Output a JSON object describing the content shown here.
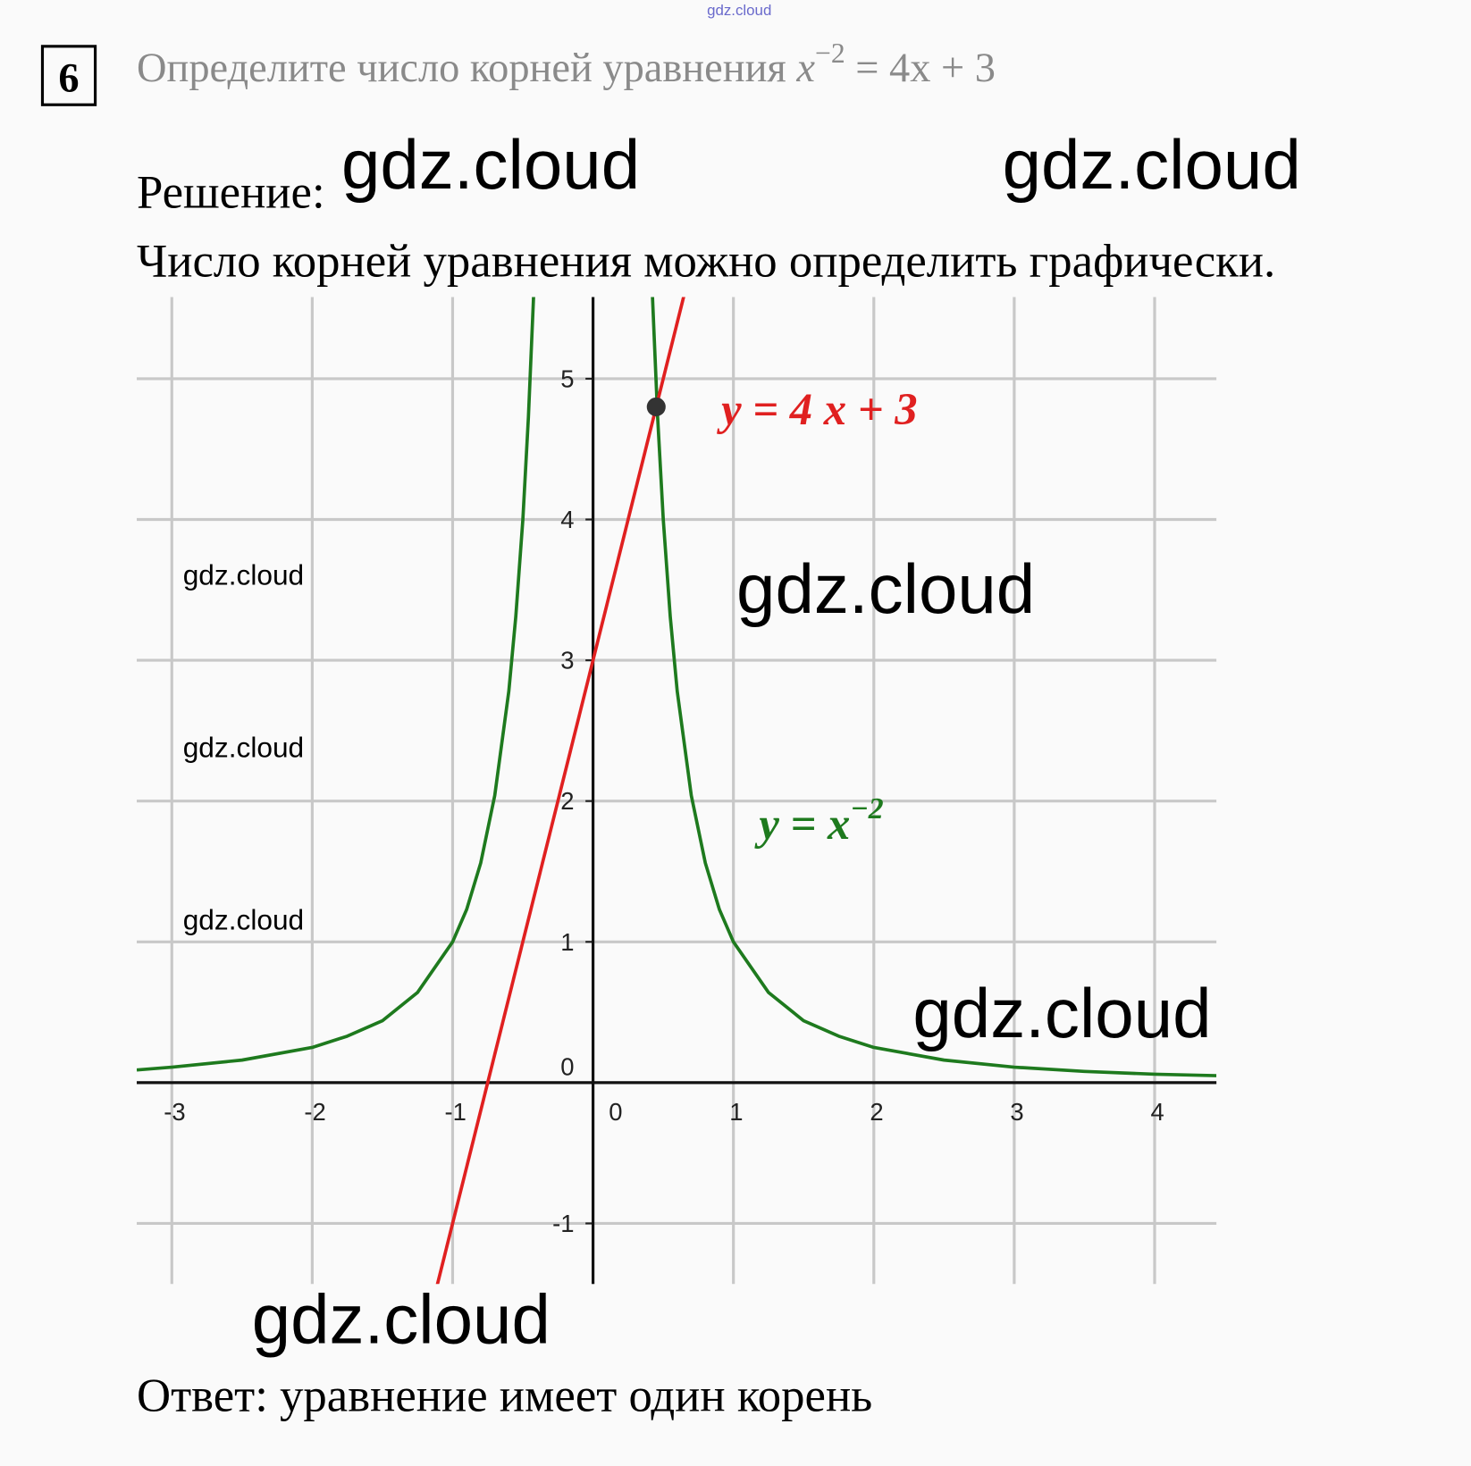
{
  "header": {
    "site": "gdz.cloud"
  },
  "problem": {
    "number": "6",
    "text": "Определите число корней уравнения ",
    "math_base": "x",
    "math_exponent": "−2",
    "math_rest": " = 4x + 3"
  },
  "solution": {
    "label": "Решение:",
    "text": "Число корней уравнения можно определить графически.",
    "answer": "Ответ: уравнение имеет один корень"
  },
  "chart_data": {
    "type": "line",
    "xlim": [
      -3.25,
      4.44
    ],
    "ylim": [
      -1.43,
      5.58
    ],
    "xticks": [
      -3,
      -2,
      -1,
      0,
      1,
      2,
      3,
      4
    ],
    "yticks": [
      -1,
      0,
      1,
      2,
      3,
      4,
      5
    ],
    "grid": true,
    "series": [
      {
        "name": "y = x",
        "name_exponent": "−2",
        "color": "#1e7a1e",
        "x": [
          -3.25,
          -3,
          -2.5,
          -2,
          -1.75,
          -1.5,
          -1.25,
          -1,
          -0.9,
          -0.8,
          -0.7,
          -0.6,
          -0.55,
          -0.5,
          -0.46,
          -0.42,
          null,
          0.42,
          0.46,
          0.5,
          0.55,
          0.6,
          0.7,
          0.8,
          0.9,
          1,
          1.25,
          1.5,
          1.75,
          2,
          2.5,
          3,
          3.5,
          4,
          4.44
        ],
        "values": [
          0.09,
          0.11,
          0.16,
          0.25,
          0.33,
          0.44,
          0.64,
          1,
          1.23,
          1.56,
          2.04,
          2.78,
          3.31,
          4,
          4.73,
          5.67,
          null,
          5.67,
          4.73,
          4,
          3.31,
          2.78,
          2.04,
          1.56,
          1.23,
          1,
          0.64,
          0.44,
          0.33,
          0.25,
          0.16,
          0.11,
          0.08,
          0.06,
          0.05
        ]
      },
      {
        "name": "y = 4 x + 3",
        "color": "#e02020",
        "x": [
          -1.11,
          0.66
        ],
        "values": [
          -1.44,
          5.64
        ]
      }
    ],
    "points": [
      {
        "x": 0.45,
        "y": 4.8,
        "color": "#333333"
      }
    ]
  },
  "watermarks": [
    "gdz.cloud",
    "gdz.cloud",
    "gdz.cloud",
    "gdz.cloud",
    "gdz.cloud",
    "gdz.cloud",
    "gdz.cloud",
    "gdz.cloud"
  ]
}
